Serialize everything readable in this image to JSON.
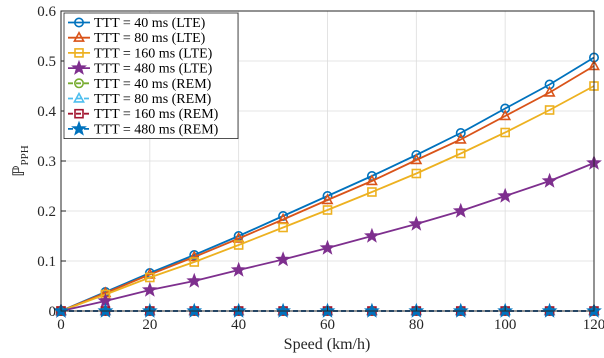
{
  "chart_data": {
    "type": "line",
    "xlabel": "Speed (km/h)",
    "ylabel_main": "ℙ",
    "ylabel_sub": "PPH",
    "xlim": [
      0,
      120
    ],
    "ylim": [
      0,
      0.6
    ],
    "xticks": [
      0,
      20,
      40,
      60,
      80,
      100,
      120
    ],
    "yticks": [
      0,
      0.1,
      0.2,
      0.3,
      0.4,
      0.5,
      0.6
    ],
    "ytick_labels": [
      "0",
      "0.1",
      "0.2",
      "0.3",
      "0.4",
      "0.5",
      "0.6"
    ],
    "grid": true,
    "legend_position": "top-left",
    "x": [
      0,
      10,
      20,
      30,
      40,
      50,
      60,
      70,
      80,
      90,
      100,
      110,
      120
    ],
    "series": [
      {
        "name": "TTT = 40 ms (LTE)",
        "color": "#0072BD",
        "marker": "circle",
        "style": "solid",
        "values": [
          0,
          0.038,
          0.076,
          0.112,
          0.15,
          0.19,
          0.23,
          0.27,
          0.312,
          0.356,
          0.405,
          0.453,
          0.507
        ]
      },
      {
        "name": "TTT = 80 ms (LTE)",
        "color": "#D95319",
        "marker": "triangle",
        "style": "solid",
        "values": [
          0,
          0.036,
          0.073,
          0.108,
          0.145,
          0.183,
          0.222,
          0.26,
          0.302,
          0.343,
          0.39,
          0.437,
          0.49
        ]
      },
      {
        "name": "TTT = 160 ms (LTE)",
        "color": "#EDB120",
        "marker": "square",
        "style": "solid",
        "values": [
          0,
          0.033,
          0.067,
          0.098,
          0.132,
          0.167,
          0.202,
          0.238,
          0.275,
          0.315,
          0.357,
          0.402,
          0.45
        ]
      },
      {
        "name": "TTT = 480 ms (LTE)",
        "color": "#7E2F8E",
        "marker": "star",
        "style": "solid",
        "values": [
          0,
          0.02,
          0.042,
          0.06,
          0.082,
          0.103,
          0.126,
          0.15,
          0.174,
          0.2,
          0.23,
          0.26,
          0.296
        ]
      },
      {
        "name": "TTT = 40 ms (REM)",
        "color": "#77AC30",
        "marker": "circle",
        "style": "dashed",
        "values": [
          0,
          0,
          0,
          0,
          0,
          0,
          0,
          0,
          0,
          0,
          0,
          0,
          0
        ]
      },
      {
        "name": "TTT = 80 ms (REM)",
        "color": "#4DBEEE",
        "marker": "triangle",
        "style": "dashed",
        "values": [
          0,
          0,
          0,
          0,
          0,
          0,
          0,
          0,
          0,
          0,
          0,
          0,
          0
        ]
      },
      {
        "name": "TTT = 160 ms (REM)",
        "color": "#A2142F",
        "marker": "square",
        "style": "dashed",
        "values": [
          0,
          0,
          0,
          0,
          0,
          0,
          0,
          0,
          0,
          0,
          0,
          0,
          0
        ]
      },
      {
        "name": "TTT = 480 ms (REM)",
        "color": "#0072BD",
        "marker": "star",
        "style": "dashed",
        "values": [
          0,
          0,
          0,
          0,
          0,
          0,
          0,
          0,
          0,
          0,
          0,
          0,
          0
        ]
      }
    ]
  }
}
